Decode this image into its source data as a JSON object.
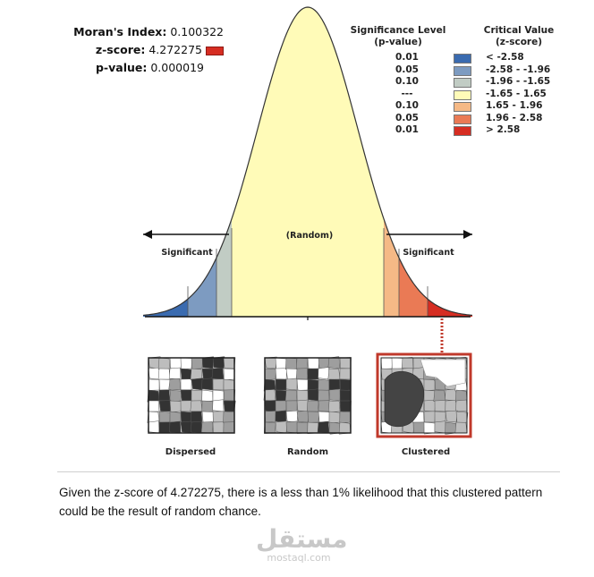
{
  "stats": {
    "moran_label": "Moran's Index:",
    "moran_value": "0.100322",
    "zscore_label": "z-score:",
    "zscore_value": "4.272275",
    "pvalue_label": "p-value:",
    "pvalue_value": "0.000019"
  },
  "legend": {
    "sig_header_1": "Significance Level",
    "sig_header_2": "(p-value)",
    "crit_header_1": "Critical Value",
    "crit_header_2": "(z-score)",
    "rows": [
      {
        "p": "0.01",
        "z": "< -2.58",
        "color": "#3a6bb0"
      },
      {
        "p": "0.05",
        "z": "-2.58 - -1.96",
        "color": "#7d9bc1"
      },
      {
        "p": "0.10",
        "z": "-1.96 - -1.65",
        "color": "#c1ccc4"
      },
      {
        "p": "---",
        "z": "-1.65 - 1.65",
        "color": "#fffbb8"
      },
      {
        "p": "0.10",
        "z": "1.65 - 1.96",
        "color": "#f5b986"
      },
      {
        "p": "0.05",
        "z": "1.96 - 2.58",
        "color": "#ea7a55"
      },
      {
        "p": "0.01",
        "z": "> 2.58",
        "color": "#d62d22"
      }
    ]
  },
  "curve": {
    "random_label": "(Random)",
    "significant_left": "Significant",
    "significant_right": "Significant"
  },
  "patterns": {
    "dispersed": "Dispersed",
    "random": "Random",
    "clustered": "Clustered",
    "highlight_color": "#c0392b"
  },
  "caption": "Given the z-score of 4.272275, there is a less than 1% likelihood that this clustered pattern could be the result of random chance.",
  "watermark": {
    "arabic": "مستقل",
    "latin": "mostaql.com"
  }
}
